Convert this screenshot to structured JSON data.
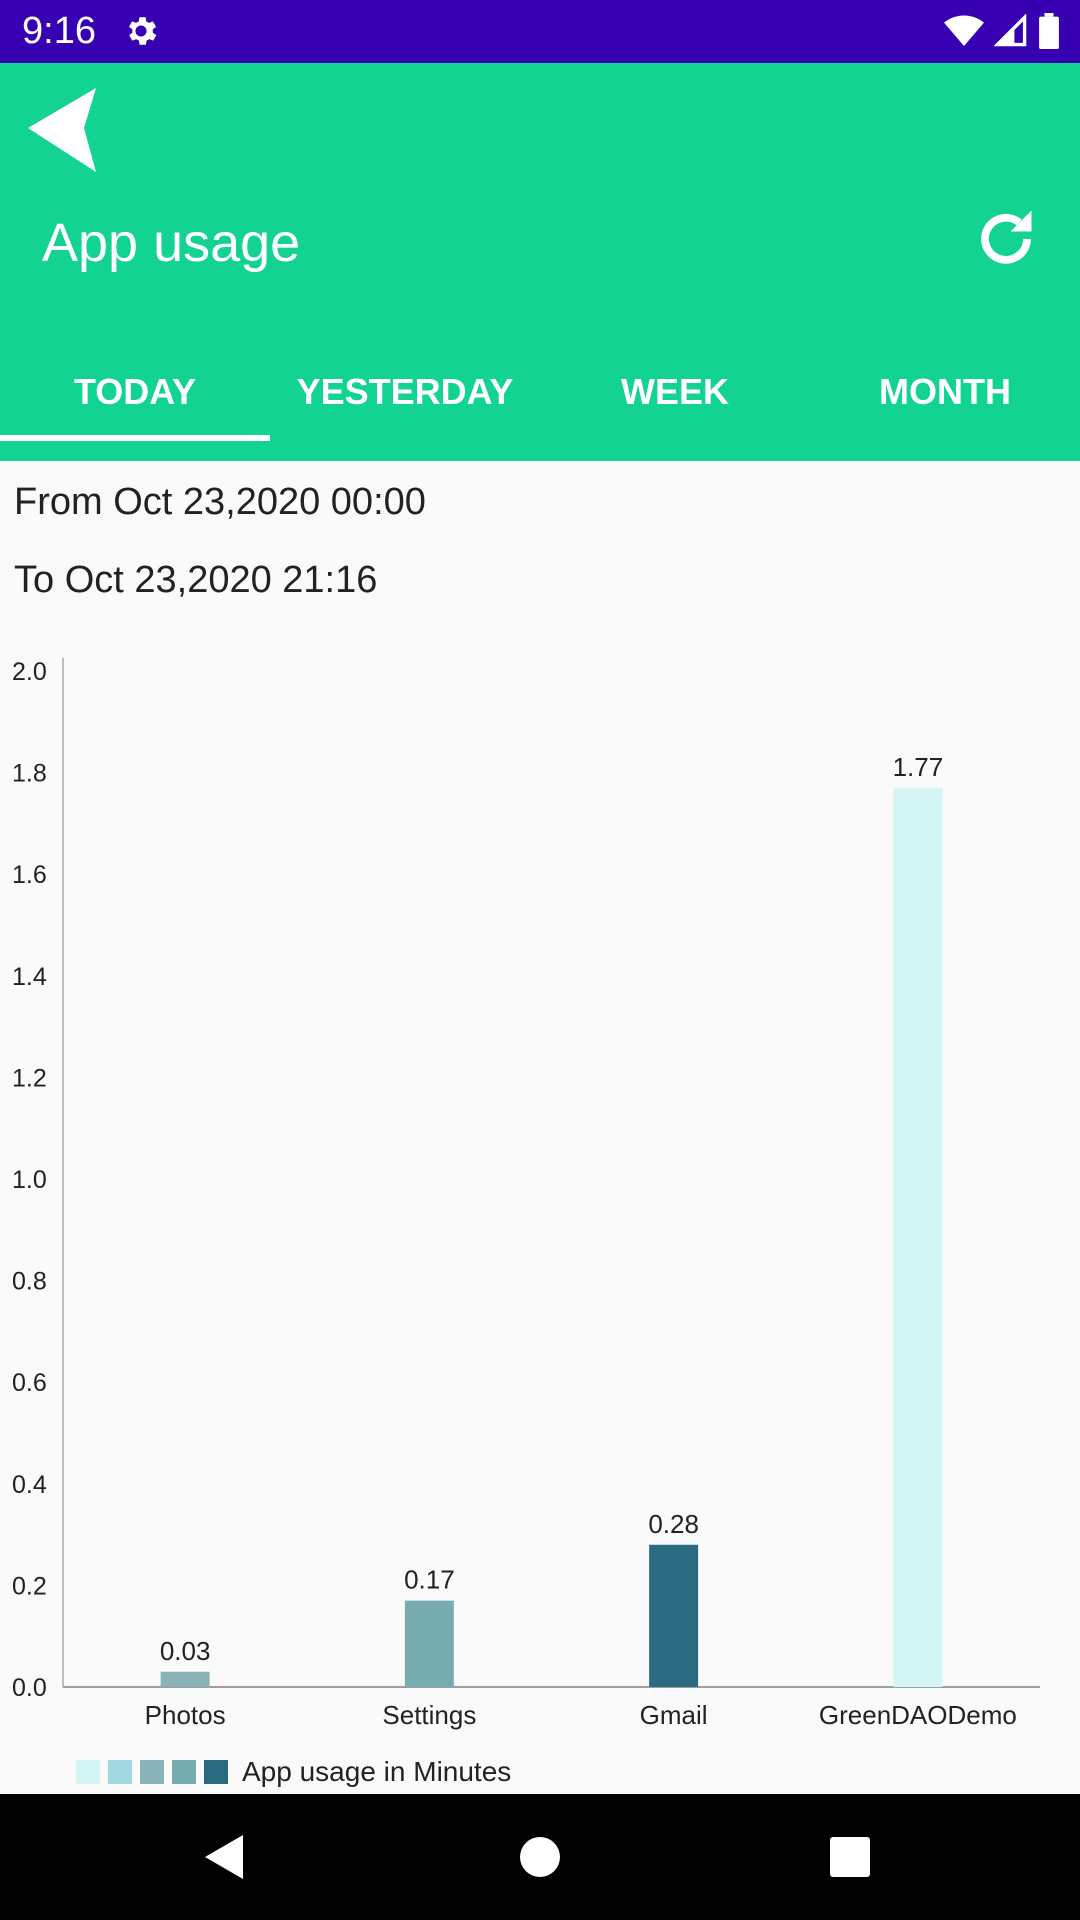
{
  "status_bar": {
    "time": "9:16",
    "icons": [
      "gear-icon",
      "wifi-icon",
      "signal-icon",
      "battery-icon"
    ]
  },
  "app_bar": {
    "title": "App usage",
    "back_icon": "back-arrow-icon",
    "refresh_icon": "refresh-icon"
  },
  "tabs": [
    {
      "label": "TODAY",
      "active": true
    },
    {
      "label": "YESTERDAY",
      "active": false
    },
    {
      "label": "WEEK",
      "active": false
    },
    {
      "label": "MONTH",
      "active": false
    }
  ],
  "range": {
    "from": "From Oct 23,2020 00:00",
    "to": "To Oct 23,2020 21:16"
  },
  "chart_data": {
    "type": "bar",
    "categories": [
      "Photos",
      "Settings",
      "Gmail",
      "GreenDAODemo"
    ],
    "values": [
      0.03,
      0.17,
      0.28,
      1.77
    ],
    "value_labels": [
      "0.03",
      "0.17",
      "0.28",
      "1.77"
    ],
    "bar_colors": [
      "#8ab3b8",
      "#78adb0",
      "#2b6b80",
      "#d3f6f4"
    ],
    "ylim": [
      0,
      2.0
    ],
    "yticks": [
      "0.0",
      "0.2",
      "0.4",
      "0.6",
      "0.8",
      "1.0",
      "1.2",
      "1.4",
      "1.6",
      "1.8",
      "2.0"
    ],
    "legend": {
      "label": "App usage in Minutes",
      "swatches": [
        "#d3f6f4",
        "#a3d9e0",
        "#8ab3b8",
        "#78adb0",
        "#2b6b80"
      ],
      "placement": "bottom-left"
    },
    "grid": false
  },
  "colors": {
    "status_bar": "#3700b3",
    "app_bar": "#12d390",
    "background": "#fafafa",
    "nav_bar": "#000000"
  },
  "nav": {
    "back": "nav-back-icon",
    "home": "nav-home-icon",
    "recents": "nav-recents-icon"
  }
}
